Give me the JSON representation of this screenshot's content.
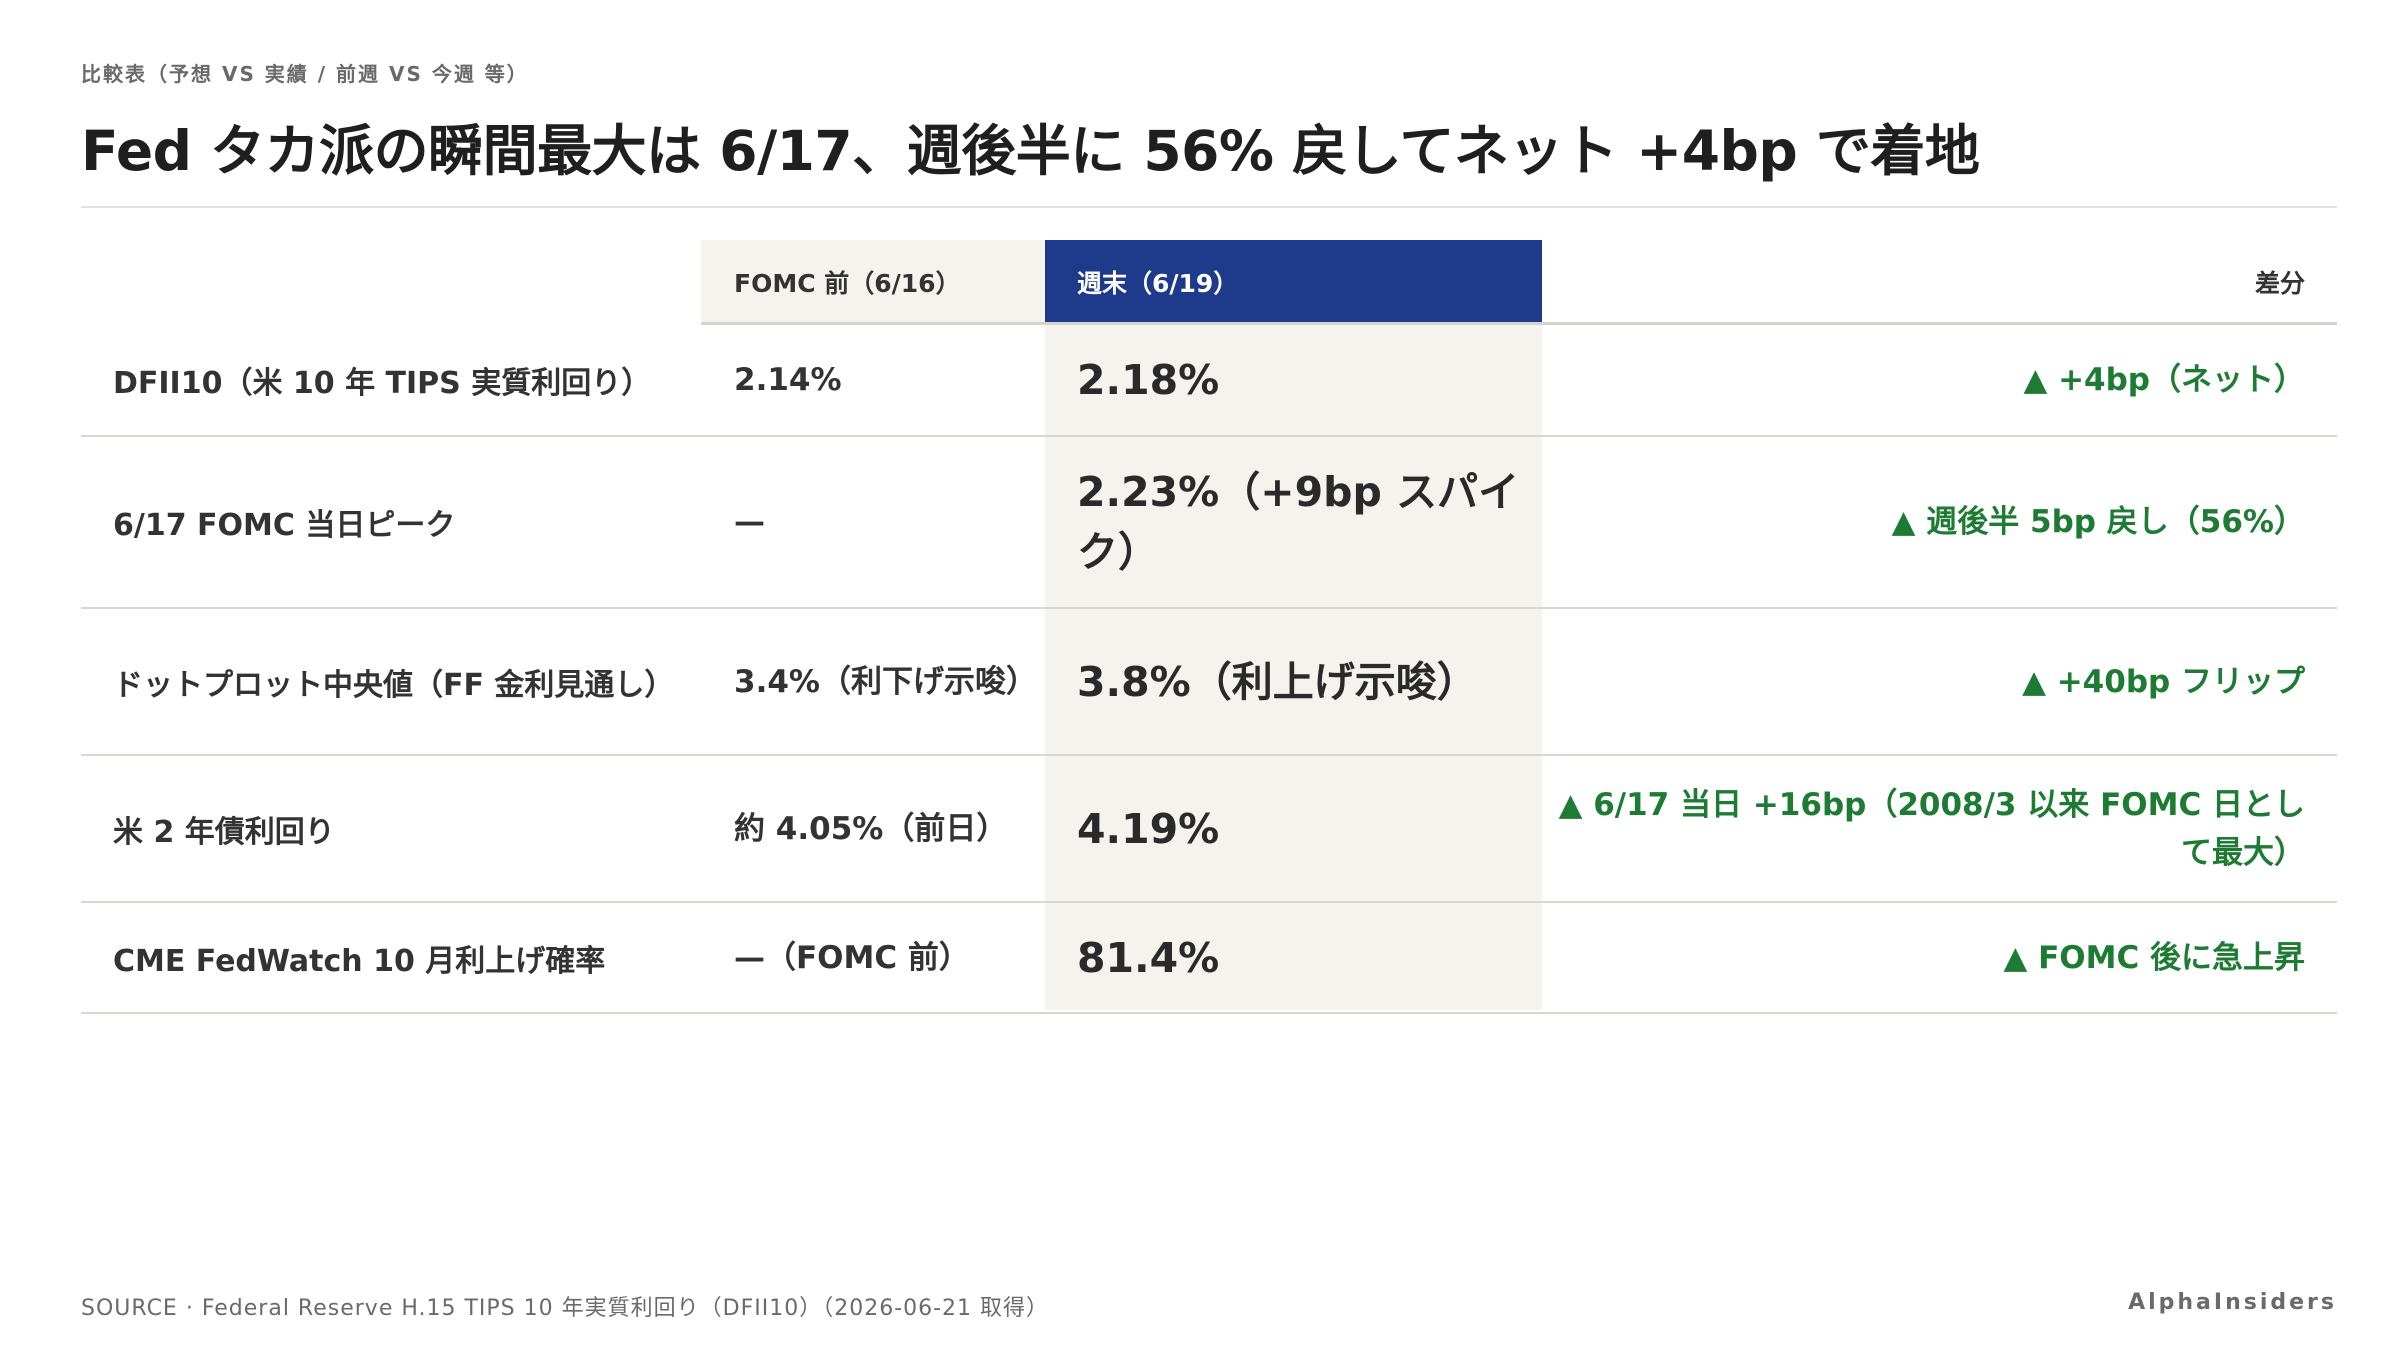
{
  "kicker": "比較表（予想 VS 実績 / 前週 VS 今週 等）",
  "title": "Fed タカ派の瞬間最大は 6/17、週後半に 56% 戻してネット +4bp で着地",
  "table": {
    "headers": {
      "prev": "FOMC 前（6/16）",
      "current": "週末（6/19）",
      "diff": "差分"
    },
    "rows": [
      {
        "label": "DFII10（米 10 年 TIPS 実質利回り）",
        "prev": "2.14%",
        "current": "2.18%",
        "diff": "▲ +4bp（ネット）"
      },
      {
        "label": "6/17 FOMC 当日ピーク",
        "prev": "—",
        "current": "2.23%（+9bp スパイク）",
        "diff": "▲ 週後半 5bp 戻し（56%）"
      },
      {
        "label": "ドットプロット中央値（FF 金利見通し）",
        "prev": "3.4%（利下げ示唆）",
        "current": "3.8%（利上げ示唆）",
        "diff": "▲ +40bp フリップ"
      },
      {
        "label": "米 2 年債利回り",
        "prev": "約 4.05%（前日）",
        "current": "4.19%",
        "diff": "▲ 6/17 当日 +16bp（2008/3 以来 FOMC 日として最大）"
      },
      {
        "label": "CME FedWatch 10 月利上げ確率",
        "prev": "—（FOMC 前）",
        "current": "81.4%",
        "diff": "▲ FOMC 後に急上昇"
      }
    ]
  },
  "footer": {
    "source": "SOURCE · Federal Reserve H.15 TIPS 10 年実質利回り（DFII10）（2026-06-21 取得）",
    "brand": "AlphaInsiders"
  },
  "colors": {
    "accent_header": "#1e3a8a",
    "positive_diff": "#1e7b34",
    "highlight_column": "#f4f3ee"
  }
}
